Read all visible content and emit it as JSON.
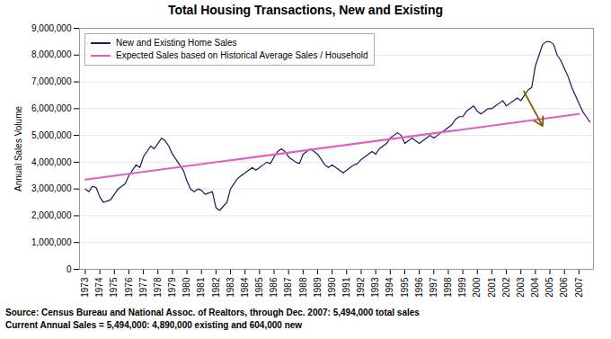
{
  "chart_data": {
    "type": "line",
    "title": "Total Housing Transactions, New and Existing",
    "ylabel": "Annual Sales Volume",
    "xlim": [
      1972.6,
      2008.0
    ],
    "xticks": [
      1973,
      1974,
      1975,
      1976,
      1977,
      1978,
      1979,
      1980,
      1981,
      1982,
      1983,
      1984,
      1985,
      1986,
      1987,
      1988,
      1989,
      1990,
      1991,
      1992,
      1993,
      1994,
      1995,
      1996,
      1997,
      1998,
      1999,
      2000,
      2001,
      2002,
      2003,
      2004,
      2005,
      2006,
      2007
    ],
    "ylim": [
      0,
      9000000
    ],
    "yticks": [
      0,
      {
        "value": 1000000,
        "label": "1,000,000"
      },
      {
        "value": 2000000,
        "label": "2,000,000"
      },
      {
        "value": 3000000,
        "label": "3,000,000"
      },
      {
        "value": 4000000,
        "label": "4,000,000"
      },
      {
        "value": 5000000,
        "label": "5,000,000"
      },
      {
        "value": 6000000,
        "label": "6,000,000"
      },
      {
        "value": 7000000,
        "label": "7,000,000"
      },
      {
        "value": 8000000,
        "label": "8,000,000"
      },
      {
        "value": 9000000,
        "label": "9,000,000"
      }
    ],
    "grid": true,
    "legend": "upper left",
    "series": [
      {
        "name": "New and Existing Home Sales",
        "color": "#1a1a5a",
        "x": [
          1973.0,
          1973.25,
          1973.5,
          1973.75,
          1974.0,
          1974.25,
          1974.5,
          1974.75,
          1975.0,
          1975.25,
          1975.5,
          1975.75,
          1976.0,
          1976.25,
          1976.5,
          1976.75,
          1977.0,
          1977.25,
          1977.5,
          1977.75,
          1978.0,
          1978.25,
          1978.5,
          1978.75,
          1979.0,
          1979.25,
          1979.5,
          1979.75,
          1980.0,
          1980.25,
          1980.5,
          1980.75,
          1981.0,
          1981.25,
          1981.5,
          1981.75,
          1982.0,
          1982.25,
          1982.5,
          1982.75,
          1983.0,
          1983.25,
          1983.5,
          1983.75,
          1984.0,
          1984.25,
          1984.5,
          1984.75,
          1985.0,
          1985.25,
          1985.5,
          1985.75,
          1986.0,
          1986.25,
          1986.5,
          1986.75,
          1987.0,
          1987.25,
          1987.5,
          1987.75,
          1988.0,
          1988.25,
          1988.5,
          1988.75,
          1989.0,
          1989.25,
          1989.5,
          1989.75,
          1990.0,
          1990.25,
          1990.5,
          1990.75,
          1991.0,
          1991.25,
          1991.5,
          1991.75,
          1992.0,
          1992.25,
          1992.5,
          1992.75,
          1993.0,
          1993.25,
          1993.5,
          1993.75,
          1994.0,
          1994.25,
          1994.5,
          1994.75,
          1995.0,
          1995.25,
          1995.5,
          1995.75,
          1996.0,
          1996.25,
          1996.5,
          1996.75,
          1997.0,
          1997.25,
          1997.5,
          1997.75,
          1998.0,
          1998.25,
          1998.5,
          1998.75,
          1999.0,
          1999.25,
          1999.5,
          1999.75,
          2000.0,
          2000.25,
          2000.5,
          2000.75,
          2001.0,
          2001.25,
          2001.5,
          2001.75,
          2002.0,
          2002.25,
          2002.5,
          2002.75,
          2003.0,
          2003.25,
          2003.5,
          2003.75,
          2004.0,
          2004.25,
          2004.5,
          2004.75,
          2005.0,
          2005.25,
          2005.5,
          2005.75,
          2006.0,
          2006.25,
          2006.5,
          2006.75,
          2007.0,
          2007.25,
          2007.5,
          2007.75
        ],
        "values": [
          3000000,
          2900000,
          3100000,
          3050000,
          2700000,
          2500000,
          2550000,
          2600000,
          2800000,
          3000000,
          3100000,
          3200000,
          3500000,
          3700000,
          3900000,
          3800000,
          4200000,
          4400000,
          4600000,
          4500000,
          4700000,
          4900000,
          4800000,
          4600000,
          4300000,
          4100000,
          3900000,
          3700000,
          3300000,
          3000000,
          2900000,
          3000000,
          2950000,
          2800000,
          2850000,
          2900000,
          2300000,
          2200000,
          2350000,
          2500000,
          3000000,
          3200000,
          3400000,
          3500000,
          3600000,
          3700000,
          3800000,
          3700000,
          3800000,
          3900000,
          4000000,
          3950000,
          4200000,
          4400000,
          4500000,
          4400000,
          4200000,
          4100000,
          4000000,
          3950000,
          4300000,
          4400000,
          4500000,
          4400000,
          4300000,
          4100000,
          3900000,
          3800000,
          3900000,
          3800000,
          3700000,
          3600000,
          3700000,
          3800000,
          3900000,
          3950000,
          4100000,
          4200000,
          4300000,
          4400000,
          4300000,
          4500000,
          4600000,
          4700000,
          4900000,
          5000000,
          5100000,
          5000000,
          4700000,
          4800000,
          4900000,
          4800000,
          4700000,
          4800000,
          4900000,
          5000000,
          4900000,
          5000000,
          5100000,
          5200000,
          5300000,
          5400000,
          5600000,
          5700000,
          5700000,
          5900000,
          6000000,
          6100000,
          5900000,
          5800000,
          5900000,
          6000000,
          6000000,
          6100000,
          6200000,
          6300000,
          6100000,
          6200000,
          6300000,
          6400000,
          6300000,
          6500000,
          6700000,
          6800000,
          7600000,
          8000000,
          8400000,
          8500000,
          8500000,
          8400000,
          8000000,
          7800000,
          7500000,
          7200000,
          6800000,
          6500000,
          6200000,
          5900000,
          5700000,
          5500000
        ]
      },
      {
        "name": "Expected Sales based on Historical Average Sales / Household",
        "color": "#e060c0",
        "x": [
          1973,
          2007
        ],
        "values": [
          3350000,
          5800000
        ]
      }
    ],
    "arrow": {
      "x1": 2003.2,
      "y1": 6650000,
      "x2": 2004.5,
      "y2": 5350000,
      "color": "#806000"
    },
    "annotations": [
      "Source: Census Bureau and National Assoc. of Realtors, through Dec. 2007: 5,494,000 total sales",
      "Current Annual Sales = 5,494,000: 4,890,000 existing and 604,000 new"
    ]
  }
}
